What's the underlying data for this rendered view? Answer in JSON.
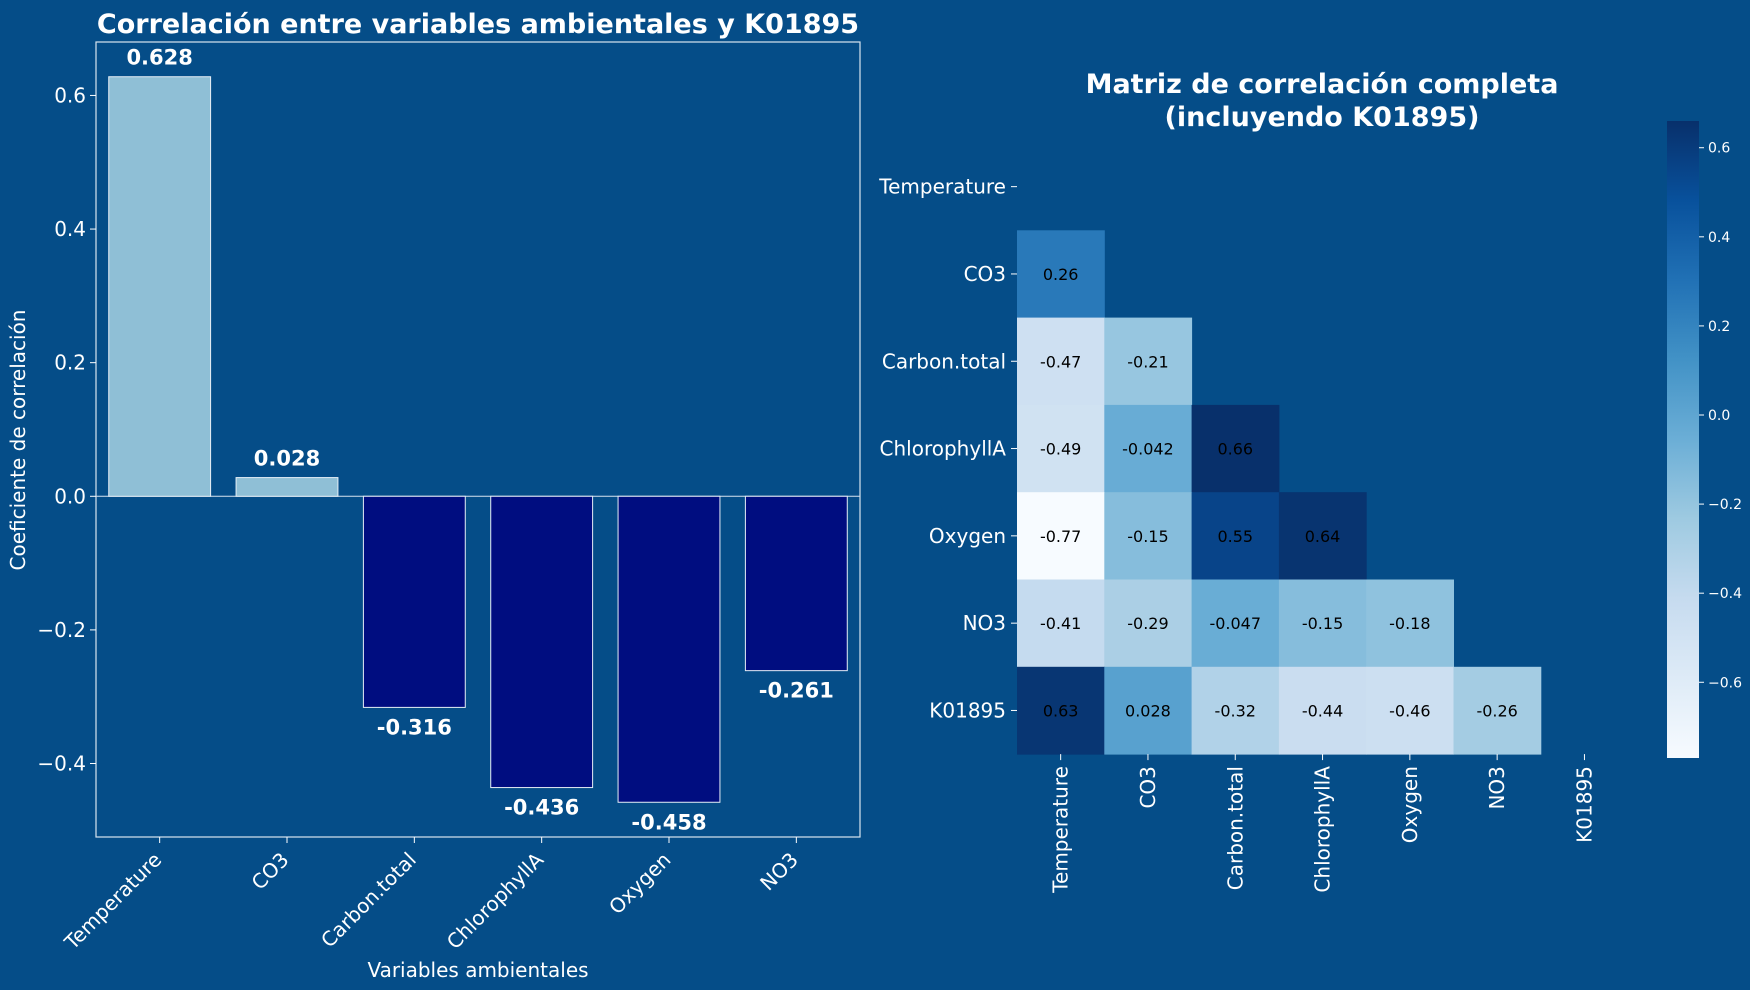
{
  "colors": {
    "background": "#054d88",
    "positive_bar": "#8fbfd6",
    "negative_bar": "#000d80",
    "text": "#ffffff"
  },
  "chart_data": [
    {
      "type": "bar",
      "title": "Correlación entre variables ambientales y K01895",
      "xlabel": "Variables ambientales",
      "ylabel": "Coeficiente de correlación",
      "categories": [
        "Temperature",
        "CO3",
        "Carbon.total",
        "ChlorophyllA",
        "Oxygen",
        "NO3"
      ],
      "values": [
        0.628,
        0.028,
        -0.316,
        -0.436,
        -0.458,
        -0.261
      ],
      "value_labels": [
        "0.628",
        "0.028",
        "-0.316",
        "-0.436",
        "-0.458",
        "-0.261"
      ],
      "ylim": [
        -0.51,
        0.68
      ],
      "yticks": [
        -0.4,
        -0.2,
        0.0,
        0.2,
        0.4,
        0.6
      ],
      "ytick_labels": [
        "−0.4",
        "−0.2",
        "0.0",
        "0.2",
        "0.4",
        "0.6"
      ],
      "grid": false
    },
    {
      "type": "heatmap",
      "title": "Matriz de correlación completa",
      "subtitle": "(incluyendo K01895)",
      "colormap": "Blues",
      "variables": [
        "Temperature",
        "CO3",
        "Carbon.total",
        "ChlorophyllA",
        "Oxygen",
        "NO3",
        "K01895"
      ],
      "matrix": [
        [
          null,
          null,
          null,
          null,
          null,
          null,
          null
        ],
        [
          0.26,
          null,
          null,
          null,
          null,
          null,
          null
        ],
        [
          -0.47,
          -0.21,
          null,
          null,
          null,
          null,
          null
        ],
        [
          -0.49,
          -0.042,
          0.66,
          null,
          null,
          null,
          null
        ],
        [
          -0.77,
          -0.15,
          0.55,
          0.64,
          null,
          null,
          null
        ],
        [
          -0.41,
          -0.29,
          -0.047,
          -0.15,
          -0.18,
          null,
          null
        ],
        [
          0.63,
          0.028,
          -0.32,
          -0.44,
          -0.46,
          -0.26,
          null
        ]
      ],
      "annotations": [
        [
          null,
          null,
          null,
          null,
          null,
          null,
          null
        ],
        [
          "0.26",
          null,
          null,
          null,
          null,
          null,
          null
        ],
        [
          "-0.47",
          "-0.21",
          null,
          null,
          null,
          null,
          null
        ],
        [
          "-0.49",
          "-0.042",
          "0.66",
          null,
          null,
          null,
          null
        ],
        [
          "-0.77",
          "-0.15",
          "0.55",
          "0.64",
          null,
          null,
          null
        ],
        [
          "-0.41",
          "-0.29",
          "-0.047",
          "-0.15",
          "-0.18",
          null,
          null
        ],
        [
          "0.63",
          "0.028",
          "-0.32",
          "-0.44",
          "-0.46",
          "-0.26",
          null
        ]
      ],
      "colorbar": {
        "range": [
          -0.77,
          0.66
        ],
        "ticks": [
          -0.6,
          -0.4,
          -0.2,
          0.0,
          0.2,
          0.4,
          0.6
        ],
        "tick_labels": [
          "−0.6",
          "−0.4",
          "−0.2",
          "0.0",
          "0.2",
          "0.4",
          "0.6"
        ]
      }
    }
  ]
}
